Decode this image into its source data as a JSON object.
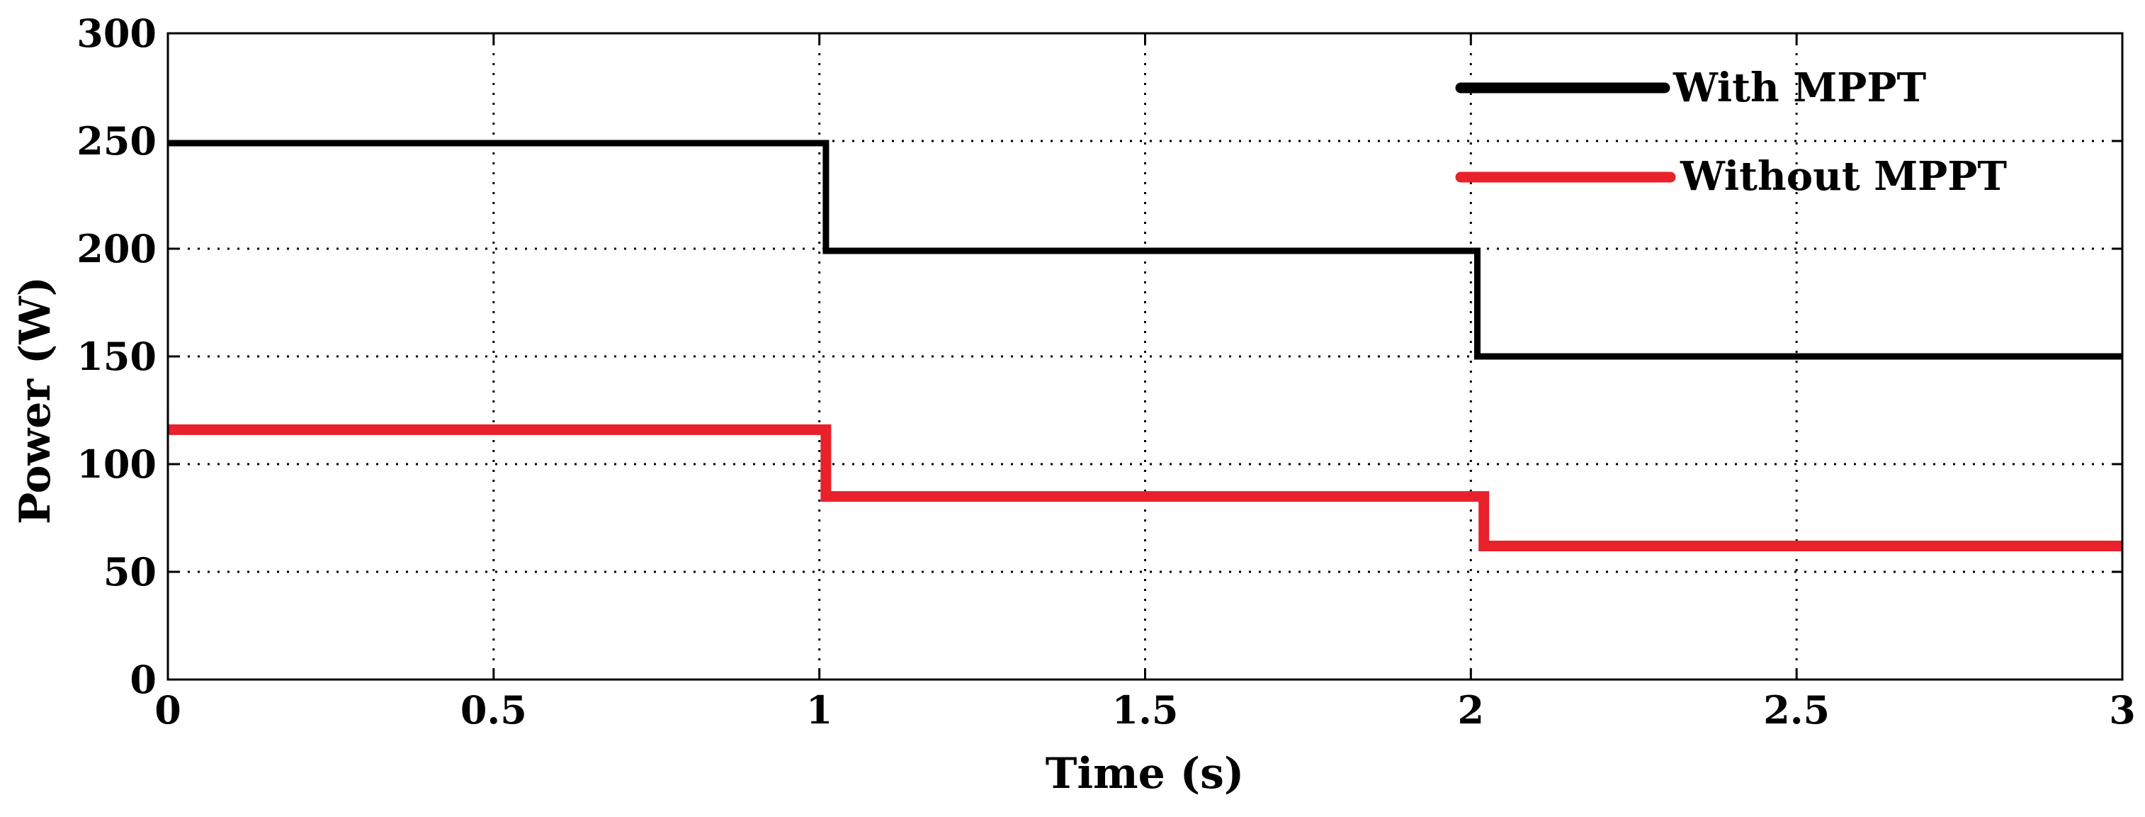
{
  "chart_data": {
    "type": "line",
    "title": "",
    "xlabel": "Time (s)",
    "ylabel": "Power (W)",
    "xlim": [
      0,
      3
    ],
    "ylim": [
      0,
      300
    ],
    "x_ticks": [
      0,
      0.5,
      1,
      1.5,
      2,
      2.5,
      3
    ],
    "x_tick_labels": [
      "0",
      "0.5",
      "1",
      "1.5",
      "2",
      "2.5",
      "3"
    ],
    "y_ticks": [
      0,
      50,
      100,
      150,
      200,
      250,
      300
    ],
    "y_tick_labels": [
      "0",
      "50",
      "100",
      "150",
      "200",
      "250",
      "300"
    ],
    "grid": true,
    "grid_style": "dotted",
    "legend_position": "top-right",
    "series": [
      {
        "name": "With MPPT",
        "color": "#000000",
        "x": [
          0,
          1.01,
          1.01,
          2.01,
          2.01,
          3
        ],
        "y": [
          249,
          249,
          199,
          199,
          150,
          150
        ]
      },
      {
        "name": "Without MPPT",
        "color": "#e8212b",
        "x": [
          0,
          1.01,
          1.01,
          2.02,
          2.02,
          3
        ],
        "y": [
          116,
          116,
          85,
          85,
          62,
          62
        ]
      }
    ]
  }
}
